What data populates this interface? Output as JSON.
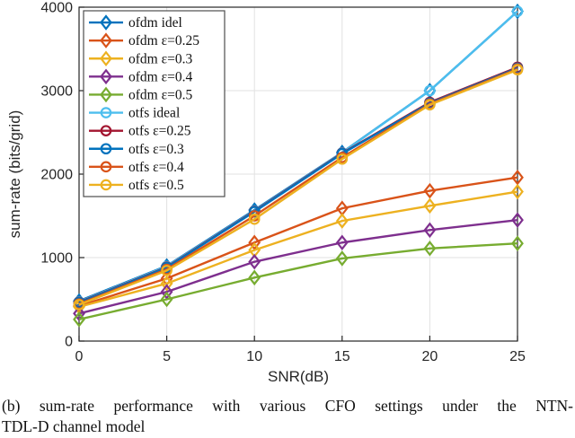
{
  "figure": {
    "caption_line1": "(b) sum-rate performance with various CFO settings under the NTN-",
    "caption_line2": "TDL-D channel model"
  },
  "chart_data": {
    "type": "line",
    "title": "",
    "xlabel": "SNR(dB)",
    "ylabel": "sum-rate (bits/grid)",
    "x": [
      0,
      5,
      10,
      15,
      20,
      25
    ],
    "xlim": [
      0,
      25
    ],
    "ylim": [
      0,
      4000
    ],
    "xticks": [
      0,
      5,
      10,
      15,
      20,
      25
    ],
    "yticks": [
      0,
      1000,
      2000,
      3000,
      4000
    ],
    "grid": true,
    "legend_position": "top-left",
    "axis_color": "#262626",
    "grid_color": "#e2e2e2",
    "series": [
      {
        "name": "ofdm idel",
        "color": "#0072BD",
        "marker": "diamond",
        "values": [
          480,
          900,
          1570,
          2260,
          3000,
          3950
        ]
      },
      {
        "name": "ofdm ε=0.25",
        "color": "#D95319",
        "marker": "diamond",
        "values": [
          420,
          750,
          1180,
          1590,
          1800,
          1960
        ]
      },
      {
        "name": "ofdm ε=0.3",
        "color": "#EDB120",
        "marker": "diamond",
        "values": [
          410,
          690,
          1090,
          1440,
          1620,
          1790
        ]
      },
      {
        "name": "ofdm ε=0.4",
        "color": "#7E2F8E",
        "marker": "diamond",
        "values": [
          330,
          590,
          950,
          1180,
          1330,
          1450
        ]
      },
      {
        "name": "ofdm ε=0.5",
        "color": "#77AC30",
        "marker": "diamond",
        "values": [
          260,
          500,
          760,
          990,
          1110,
          1170
        ]
      },
      {
        "name": "otfs ideal",
        "color": "#4DBEEE",
        "marker": "circle",
        "values": [
          470,
          895,
          1560,
          2255,
          3000,
          3950
        ]
      },
      {
        "name": "otfs ε=0.25",
        "color": "#A2142F",
        "marker": "circle",
        "values": [
          465,
          885,
          1555,
          2250,
          2860,
          3280
        ]
      },
      {
        "name": "otfs ε=0.3",
        "color": "#0072BD",
        "marker": "circle",
        "values": [
          460,
          880,
          1550,
          2245,
          2850,
          3270
        ]
      },
      {
        "name": "otfs ε=0.4",
        "color": "#D95319",
        "marker": "circle",
        "values": [
          445,
          860,
          1500,
          2200,
          2840,
          3260
        ]
      },
      {
        "name": "otfs ε=0.5",
        "color": "#EDB120",
        "marker": "circle",
        "values": [
          435,
          845,
          1460,
          2180,
          2830,
          3250
        ]
      }
    ]
  }
}
